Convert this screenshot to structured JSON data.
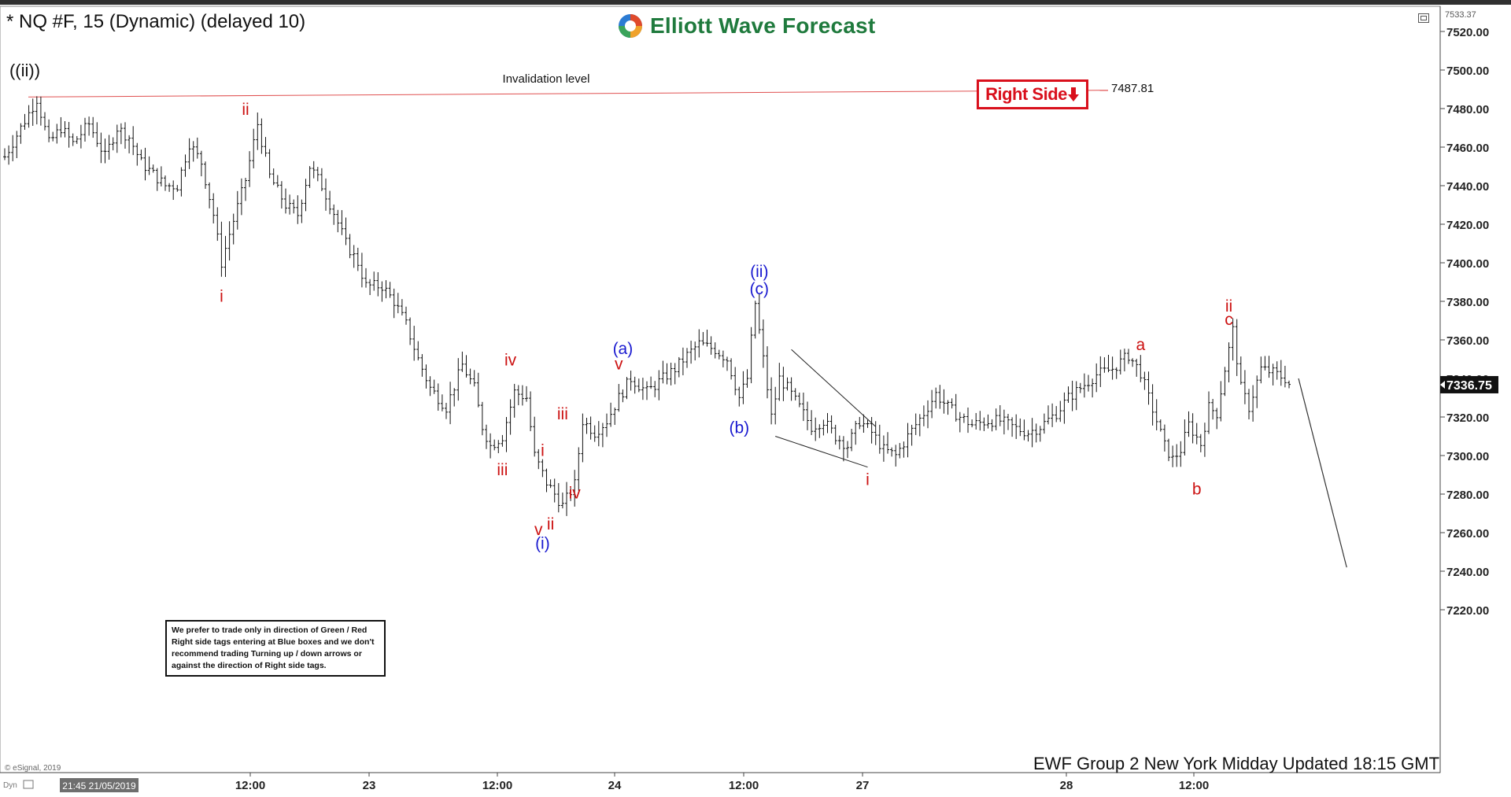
{
  "window": {
    "title": "* NQ #F, 15 (Dynamic) (delayed 10)",
    "brand": "Elliott Wave Forecast",
    "right_side_tag": "Right Side",
    "note": "We prefer to trade only in direction of Green / Red Right side tags entering at Blue boxes and we don't recommend trading Turning up / down arrows or against the direction of Right side tags.",
    "footer": "EWF Group 2 New York Midday Updated 18:15 GMT",
    "copyright": "© eSignal, 2019",
    "cursor_date": "21:45 21/05/2019",
    "corner_label": "Dyn"
  },
  "chart_data": {
    "type": "ohlc",
    "symbol": "NQ #F",
    "interval": "15",
    "y_axis": {
      "min": 7210,
      "max": 7540,
      "ticks": [
        7520,
        7500,
        7480,
        7460,
        7440,
        7420,
        7400,
        7380,
        7360,
        7340,
        7320,
        7300,
        7280,
        7260,
        7240,
        7220
      ],
      "tick_labels": [
        "7520.00",
        "7500.00",
        "7480.00",
        "7460.00",
        "7440.00",
        "7420.00",
        "7400.00",
        "7380.00",
        "7360.00",
        "7340.00",
        "7320.00",
        "7300.00",
        "7280.00",
        "7260.00",
        "7240.00",
        "7220.00"
      ],
      "top_value_label": "7533.37",
      "last_price": 7336.75,
      "last_price_label": "7336.75"
    },
    "x_axis": {
      "labels": [
        "12:00",
        "23",
        "12:00",
        "24",
        "12:00",
        "27",
        "28",
        "12:00"
      ]
    },
    "invalidation": {
      "label": "Invalidation level",
      "value": 7487.81,
      "value_label": "7487.81"
    },
    "price_path": [
      [
        0,
        7455
      ],
      [
        4,
        7470
      ],
      [
        8,
        7485
      ],
      [
        11,
        7462
      ],
      [
        14,
        7470
      ],
      [
        17,
        7462
      ],
      [
        21,
        7472
      ],
      [
        25,
        7455
      ],
      [
        28,
        7470
      ],
      [
        31,
        7465
      ],
      [
        34,
        7452
      ],
      [
        37,
        7446
      ],
      [
        40,
        7440
      ],
      [
        43,
        7440
      ],
      [
        46,
        7462
      ],
      [
        49,
        7452
      ],
      [
        52,
        7425
      ],
      [
        54,
        7400
      ],
      [
        56,
        7415
      ],
      [
        60,
        7443
      ],
      [
        63,
        7472
      ],
      [
        66,
        7445
      ],
      [
        70,
        7430
      ],
      [
        73,
        7425
      ],
      [
        76,
        7450
      ],
      [
        79,
        7440
      ],
      [
        82,
        7426
      ],
      [
        85,
        7410
      ],
      [
        88,
        7400
      ],
      [
        90,
        7388
      ],
      [
        94,
        7388
      ],
      [
        97,
        7380
      ],
      [
        100,
        7368
      ],
      [
        103,
        7350
      ],
      [
        106,
        7335
      ],
      [
        110,
        7325
      ],
      [
        114,
        7347
      ],
      [
        117,
        7335
      ],
      [
        119,
        7315
      ],
      [
        121,
        7305
      ],
      [
        124,
        7310
      ],
      [
        127,
        7333
      ],
      [
        130,
        7330
      ],
      [
        132,
        7300
      ],
      [
        135,
        7286
      ],
      [
        139,
        7274
      ],
      [
        142,
        7285
      ],
      [
        144,
        7318
      ],
      [
        147,
        7312
      ],
      [
        150,
        7318
      ],
      [
        153,
        7330
      ],
      [
        156,
        7340
      ],
      [
        160,
        7333
      ],
      [
        164,
        7340
      ],
      [
        167,
        7345
      ],
      [
        170,
        7352
      ],
      [
        173,
        7358
      ],
      [
        177,
        7355
      ],
      [
        180,
        7350
      ],
      [
        183,
        7330
      ],
      [
        185,
        7340
      ],
      [
        186,
        7360
      ],
      [
        187,
        7379
      ],
      [
        189,
        7350
      ],
      [
        191,
        7320
      ],
      [
        193,
        7340
      ],
      [
        195,
        7335
      ],
      [
        198,
        7325
      ],
      [
        201,
        7315
      ],
      [
        204,
        7318
      ],
      [
        207,
        7310
      ],
      [
        210,
        7305
      ],
      [
        213,
        7318
      ],
      [
        216,
        7312
      ],
      [
        219,
        7303
      ],
      [
        222,
        7300
      ],
      [
        225,
        7310
      ],
      [
        229,
        7322
      ],
      [
        232,
        7332
      ],
      [
        235,
        7325
      ],
      [
        238,
        7320
      ],
      [
        241,
        7316
      ],
      [
        245,
        7318
      ],
      [
        248,
        7318
      ],
      [
        252,
        7314
      ],
      [
        255,
        7312
      ],
      [
        258,
        7315
      ],
      [
        262,
        7322
      ],
      [
        265,
        7330
      ],
      [
        268,
        7335
      ],
      [
        272,
        7342
      ],
      [
        276,
        7345
      ],
      [
        280,
        7352
      ],
      [
        283,
        7343
      ],
      [
        285,
        7330
      ],
      [
        287,
        7318
      ],
      [
        289,
        7305
      ],
      [
        291,
        7298
      ],
      [
        293,
        7303
      ],
      [
        295,
        7316
      ],
      [
        298,
        7306
      ],
      [
        300,
        7325
      ],
      [
        302,
        7322
      ],
      [
        304,
        7345
      ],
      [
        306,
        7365
      ],
      [
        308,
        7335
      ],
      [
        310,
        7325
      ],
      [
        313,
        7345
      ],
      [
        316,
        7343
      ],
      [
        319,
        7340
      ],
      [
        320,
        7337
      ]
    ],
    "projection": [
      [
        320,
        7340
      ],
      [
        332,
        7242
      ]
    ],
    "wave_labels": [
      {
        "text": "((ii))",
        "bar": 5,
        "value": 7500,
        "color": "#111111"
      },
      {
        "text": "i",
        "bar": 54,
        "value": 7383,
        "color": "#cc1111"
      },
      {
        "text": "ii",
        "bar": 60,
        "value": 7480,
        "color": "#cc1111"
      },
      {
        "text": "iii",
        "bar": 124,
        "value": 7293,
        "color": "#cc1111"
      },
      {
        "text": "iv",
        "bar": 126,
        "value": 7350,
        "color": "#cc1111"
      },
      {
        "text": "v",
        "bar": 133,
        "value": 7262,
        "color": "#cc1111"
      },
      {
        "text": "i",
        "bar": 134,
        "value": 7303,
        "color": "#cc1111"
      },
      {
        "text": "ii",
        "bar": 136,
        "value": 7265,
        "color": "#cc1111"
      },
      {
        "text": "iii",
        "bar": 139,
        "value": 7322,
        "color": "#cc1111"
      },
      {
        "text": "iv",
        "bar": 142,
        "value": 7281,
        "color": "#cc1111"
      },
      {
        "text": "v",
        "bar": 153,
        "value": 7348,
        "color": "#cc1111"
      },
      {
        "text": "(i)",
        "bar": 134,
        "value": 7255,
        "color": "#1a1ad0"
      },
      {
        "text": "(a)",
        "bar": 154,
        "value": 7356,
        "color": "#1a1ad0"
      },
      {
        "text": "(b)",
        "bar": 183,
        "value": 7315,
        "color": "#1a1ad0"
      },
      {
        "text": "(ii)",
        "bar": 188,
        "value": 7396,
        "color": "#1a1ad0"
      },
      {
        "text": "(c)",
        "bar": 188,
        "value": 7387,
        "color": "#1a1ad0"
      },
      {
        "text": "i",
        "bar": 215,
        "value": 7288,
        "color": "#cc1111"
      },
      {
        "text": "a",
        "bar": 283,
        "value": 7358,
        "color": "#cc1111"
      },
      {
        "text": "b",
        "bar": 297,
        "value": 7283,
        "color": "#cc1111"
      },
      {
        "text": "ii",
        "bar": 305,
        "value": 7378,
        "color": "#cc1111"
      },
      {
        "text": "c",
        "bar": 305,
        "value": 7371,
        "color": "#cc1111"
      }
    ],
    "diagonal": {
      "upper": [
        [
          196,
          7355
        ],
        [
          217,
          7315
        ]
      ],
      "lower": [
        [
          192,
          7310
        ],
        [
          215,
          7294
        ]
      ]
    }
  }
}
